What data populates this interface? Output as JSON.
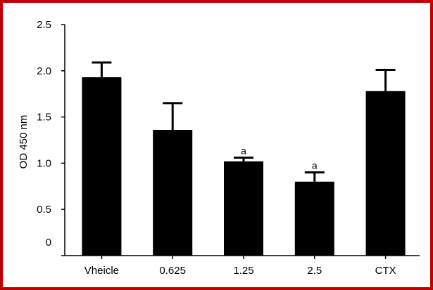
{
  "chart_data": {
    "type": "bar",
    "title": "",
    "xlabel": "",
    "ylabel": "OD 450 nm",
    "ylim": [
      0,
      2.5
    ],
    "yticks": [
      0,
      0.5,
      1.0,
      1.5,
      2.0,
      2.5
    ],
    "ytick_labels": [
      "0",
      "0.5",
      "1.0",
      "1.5",
      "2.0",
      "2.5"
    ],
    "categories": [
      "Vheicle",
      "0.625",
      "1.25",
      "2.5",
      "CTX"
    ],
    "values": [
      1.93,
      1.36,
      1.02,
      0.8,
      1.78
    ],
    "errors": [
      0.16,
      0.29,
      0.04,
      0.1,
      0.23
    ],
    "annotations": [
      "",
      "",
      "a",
      "a",
      ""
    ],
    "grid": false,
    "colors": {
      "bar": "#000000",
      "frame": "#c00000"
    }
  }
}
